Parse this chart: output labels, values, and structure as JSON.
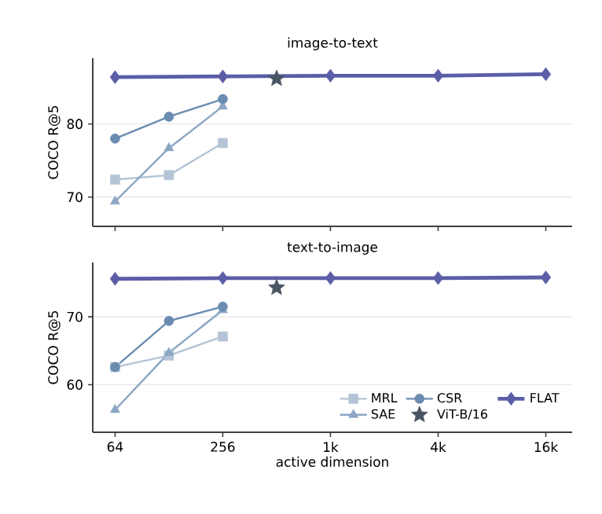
{
  "chart_data": [
    {
      "type": "line",
      "title": "image-to-text",
      "ylabel": "COCO R@5",
      "xlim": [
        48,
        23000
      ],
      "ylim": [
        66,
        89
      ],
      "log": "x",
      "xticks": [
        {
          "value": 64,
          "label": null
        },
        {
          "value": 256,
          "label": null
        },
        {
          "value": 1024,
          "label": null
        },
        {
          "value": 4096,
          "label": null
        },
        {
          "value": 16384,
          "label": null
        }
      ],
      "yticks": [
        70,
        80
      ],
      "grid": "y",
      "tick_labels": "y",
      "series": [
        {
          "color": "#b4c4d6",
          "marker": "square",
          "x": [
            64,
            128,
            256
          ],
          "values": [
            72.4,
            73.0,
            77.4
          ]
        },
        {
          "color": "#8ca6c4",
          "marker": "triangle",
          "x": [
            64,
            128,
            256
          ],
          "values": [
            69.4,
            76.7,
            82.4
          ]
        },
        {
          "color": "#6a8cb0",
          "marker": "circle",
          "x": [
            64,
            128,
            256
          ],
          "values": [
            78.0,
            81.0,
            83.4
          ]
        },
        {
          "type": "scatter",
          "color": "#4a5563",
          "marker": "star",
          "x": [
            512
          ],
          "values": [
            86.2
          ]
        },
        {
          "color": "#5b5ea6",
          "marker": "diamond",
          "x": [
            64,
            256,
            1024,
            4096,
            16384
          ],
          "values": [
            86.4,
            86.5,
            86.6,
            86.6,
            86.8
          ]
        }
      ]
    },
    {
      "type": "line",
      "title": "text-to-image",
      "xlabel": "active dimension",
      "ylabel": "COCO R@5",
      "xlim": [
        48,
        23000
      ],
      "ylim": [
        53,
        78
      ],
      "log": "x",
      "xticks": [
        64,
        256,
        {
          "value": 1024,
          "label": "1k"
        },
        {
          "value": 4096,
          "label": "4k"
        },
        {
          "value": 16384,
          "label": "16k"
        }
      ],
      "yticks": [
        60,
        70
      ],
      "grid": "y",
      "legend": "bottom right",
      "series": [
        {
          "name": "MRL",
          "color": "#b4c4d6",
          "marker": "square",
          "x": [
            64,
            128,
            256
          ],
          "values": [
            62.6,
            64.3,
            67.1
          ]
        },
        {
          "name": "SAE",
          "color": "#8ca6c4",
          "marker": "triangle",
          "x": [
            64,
            128,
            256
          ],
          "values": [
            56.3,
            64.7,
            71.0
          ]
        },
        {
          "name": "CSR",
          "color": "#6a8cb0",
          "marker": "circle",
          "x": [
            64,
            128,
            256
          ],
          "values": [
            62.6,
            69.4,
            71.5
          ]
        },
        {
          "name": "ViT-B/16",
          "type": "scatter",
          "color": "#4a5563",
          "marker": "star",
          "x": [
            512
          ],
          "values": [
            74.3
          ]
        },
        {
          "name": "FLAT",
          "color": "#5b5ea6",
          "marker": "diamond",
          "x": [
            64,
            256,
            1024,
            4096,
            16384
          ],
          "values": [
            75.6,
            75.7,
            75.7,
            75.7,
            75.8
          ]
        }
      ]
    }
  ]
}
